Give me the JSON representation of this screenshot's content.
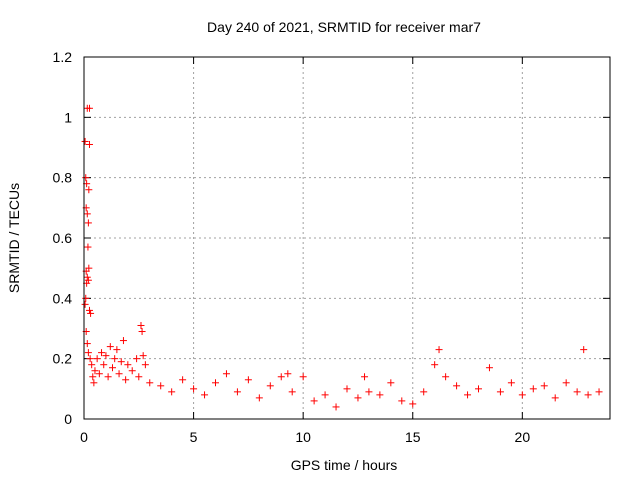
{
  "chart_data": {
    "type": "scatter",
    "title": "Day 240 of 2021, SRMTID for receiver mar7",
    "xlabel": "GPS time / hours",
    "ylabel": "SRMTID / TECUs",
    "xlim": [
      0,
      24
    ],
    "ylim": [
      0,
      1.2
    ],
    "xticks": [
      0,
      5,
      10,
      15,
      20
    ],
    "xtick_labels": [
      "0",
      "5",
      "10",
      "15",
      "20"
    ],
    "yticks": [
      0,
      0.2,
      0.4,
      0.6,
      0.8,
      1,
      1.2
    ],
    "ytick_labels": [
      "0",
      "0.2",
      "0.4",
      "0.6",
      "0.8",
      "1",
      "1.2"
    ],
    "grid": true,
    "marker": "+",
    "color": "#ff0000",
    "series": [
      {
        "name": "SRMTID",
        "points": [
          [
            0.05,
            0.92
          ],
          [
            0.08,
            0.8
          ],
          [
            0.1,
            0.7
          ],
          [
            0.12,
            0.78
          ],
          [
            0.15,
            0.68
          ],
          [
            0.18,
            0.57
          ],
          [
            0.2,
            0.65
          ],
          [
            0.22,
            0.76
          ],
          [
            0.25,
            0.91
          ],
          [
            0.15,
            1.03
          ],
          [
            0.25,
            1.03
          ],
          [
            0.1,
            0.49
          ],
          [
            0.15,
            0.47
          ],
          [
            0.2,
            0.46
          ],
          [
            0.22,
            0.5
          ],
          [
            0.05,
            0.38
          ],
          [
            0.08,
            0.4
          ],
          [
            0.12,
            0.45
          ],
          [
            0.25,
            0.36
          ],
          [
            0.3,
            0.35
          ],
          [
            0.1,
            0.29
          ],
          [
            0.15,
            0.25
          ],
          [
            0.2,
            0.22
          ],
          [
            0.28,
            0.2
          ],
          [
            0.35,
            0.18
          ],
          [
            0.4,
            0.14
          ],
          [
            0.45,
            0.12
          ],
          [
            0.5,
            0.16
          ],
          [
            0.6,
            0.2
          ],
          [
            0.7,
            0.15
          ],
          [
            0.8,
            0.22
          ],
          [
            0.9,
            0.18
          ],
          [
            1.0,
            0.21
          ],
          [
            1.1,
            0.14
          ],
          [
            1.2,
            0.24
          ],
          [
            1.3,
            0.17
          ],
          [
            1.4,
            0.2
          ],
          [
            1.5,
            0.23
          ],
          [
            1.6,
            0.15
          ],
          [
            1.7,
            0.19
          ],
          [
            1.8,
            0.26
          ],
          [
            1.9,
            0.13
          ],
          [
            2.0,
            0.18
          ],
          [
            2.2,
            0.16
          ],
          [
            2.4,
            0.2
          ],
          [
            2.5,
            0.14
          ],
          [
            2.6,
            0.31
          ],
          [
            2.65,
            0.29
          ],
          [
            2.7,
            0.21
          ],
          [
            2.8,
            0.18
          ],
          [
            3.0,
            0.12
          ],
          [
            3.5,
            0.11
          ],
          [
            4.0,
            0.09
          ],
          [
            4.5,
            0.13
          ],
          [
            5.0,
            0.1
          ],
          [
            5.5,
            0.08
          ],
          [
            6.0,
            0.12
          ],
          [
            6.5,
            0.15
          ],
          [
            7.0,
            0.09
          ],
          [
            7.5,
            0.13
          ],
          [
            8.0,
            0.07
          ],
          [
            8.5,
            0.11
          ],
          [
            9.0,
            0.14
          ],
          [
            9.3,
            0.15
          ],
          [
            9.5,
            0.09
          ],
          [
            10.0,
            0.14
          ],
          [
            10.5,
            0.06
          ],
          [
            11.0,
            0.08
          ],
          [
            11.5,
            0.04
          ],
          [
            12.0,
            0.1
          ],
          [
            12.5,
            0.07
          ],
          [
            12.8,
            0.14
          ],
          [
            13.0,
            0.09
          ],
          [
            13.5,
            0.08
          ],
          [
            14.0,
            0.12
          ],
          [
            14.5,
            0.06
          ],
          [
            15.0,
            0.05
          ],
          [
            15.5,
            0.09
          ],
          [
            16.0,
            0.18
          ],
          [
            16.2,
            0.23
          ],
          [
            16.5,
            0.14
          ],
          [
            17.0,
            0.11
          ],
          [
            17.5,
            0.08
          ],
          [
            18.0,
            0.1
          ],
          [
            18.5,
            0.17
          ],
          [
            19.0,
            0.09
          ],
          [
            19.5,
            0.12
          ],
          [
            20.0,
            0.08
          ],
          [
            20.5,
            0.1
          ],
          [
            21.0,
            0.11
          ],
          [
            21.5,
            0.07
          ],
          [
            22.0,
            0.12
          ],
          [
            22.5,
            0.09
          ],
          [
            22.8,
            0.23
          ],
          [
            23.0,
            0.08
          ],
          [
            23.5,
            0.09
          ]
        ]
      }
    ]
  }
}
